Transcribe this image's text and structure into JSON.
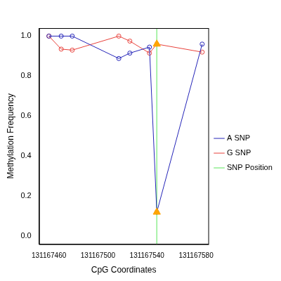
{
  "chart_data": {
    "type": "line",
    "x_label": "CpG Coordinates",
    "y_label": "Methylation Frequency",
    "x": [
      131167460,
      131167470,
      131167479,
      131167517,
      131167526,
      131167542,
      131167548,
      131167585
    ],
    "series": [
      {
        "name": "A SNP",
        "color": "#2424b8",
        "marker": "circle",
        "values": [
          1.0,
          1.0,
          1.0,
          0.888,
          0.915,
          0.945,
          0.12,
          0.96
        ]
      },
      {
        "name": "G SNP",
        "color": "#e8413b",
        "marker": "circle",
        "values": [
          1.0,
          0.935,
          0.93,
          1.0,
          0.975,
          0.915,
          0.96,
          0.92
        ]
      }
    ],
    "snp_position": {
      "name": "SNP Position",
      "x": 131167548,
      "color": "#90ee90",
      "line_style": "solid"
    },
    "snp_highlight": {
      "marker": "triangle",
      "color": "#ffa500"
    },
    "xlim": [
      131167452,
      131167590
    ],
    "xticks": [
      131167460,
      131167500,
      131167540,
      131167580
    ],
    "ylim": [
      -0.04,
      1.04
    ],
    "yticks": [
      {
        "value": 0,
        "label": "0.0"
      },
      {
        "value": 0.2,
        "label": "0.2"
      },
      {
        "value": 0.4,
        "label": "0.4"
      },
      {
        "value": 0.6,
        "label": "0.6"
      },
      {
        "value": 0.8,
        "label": "0.8"
      },
      {
        "value": 1,
        "label": "1.0"
      }
    ],
    "grid": false,
    "legend": "right"
  }
}
